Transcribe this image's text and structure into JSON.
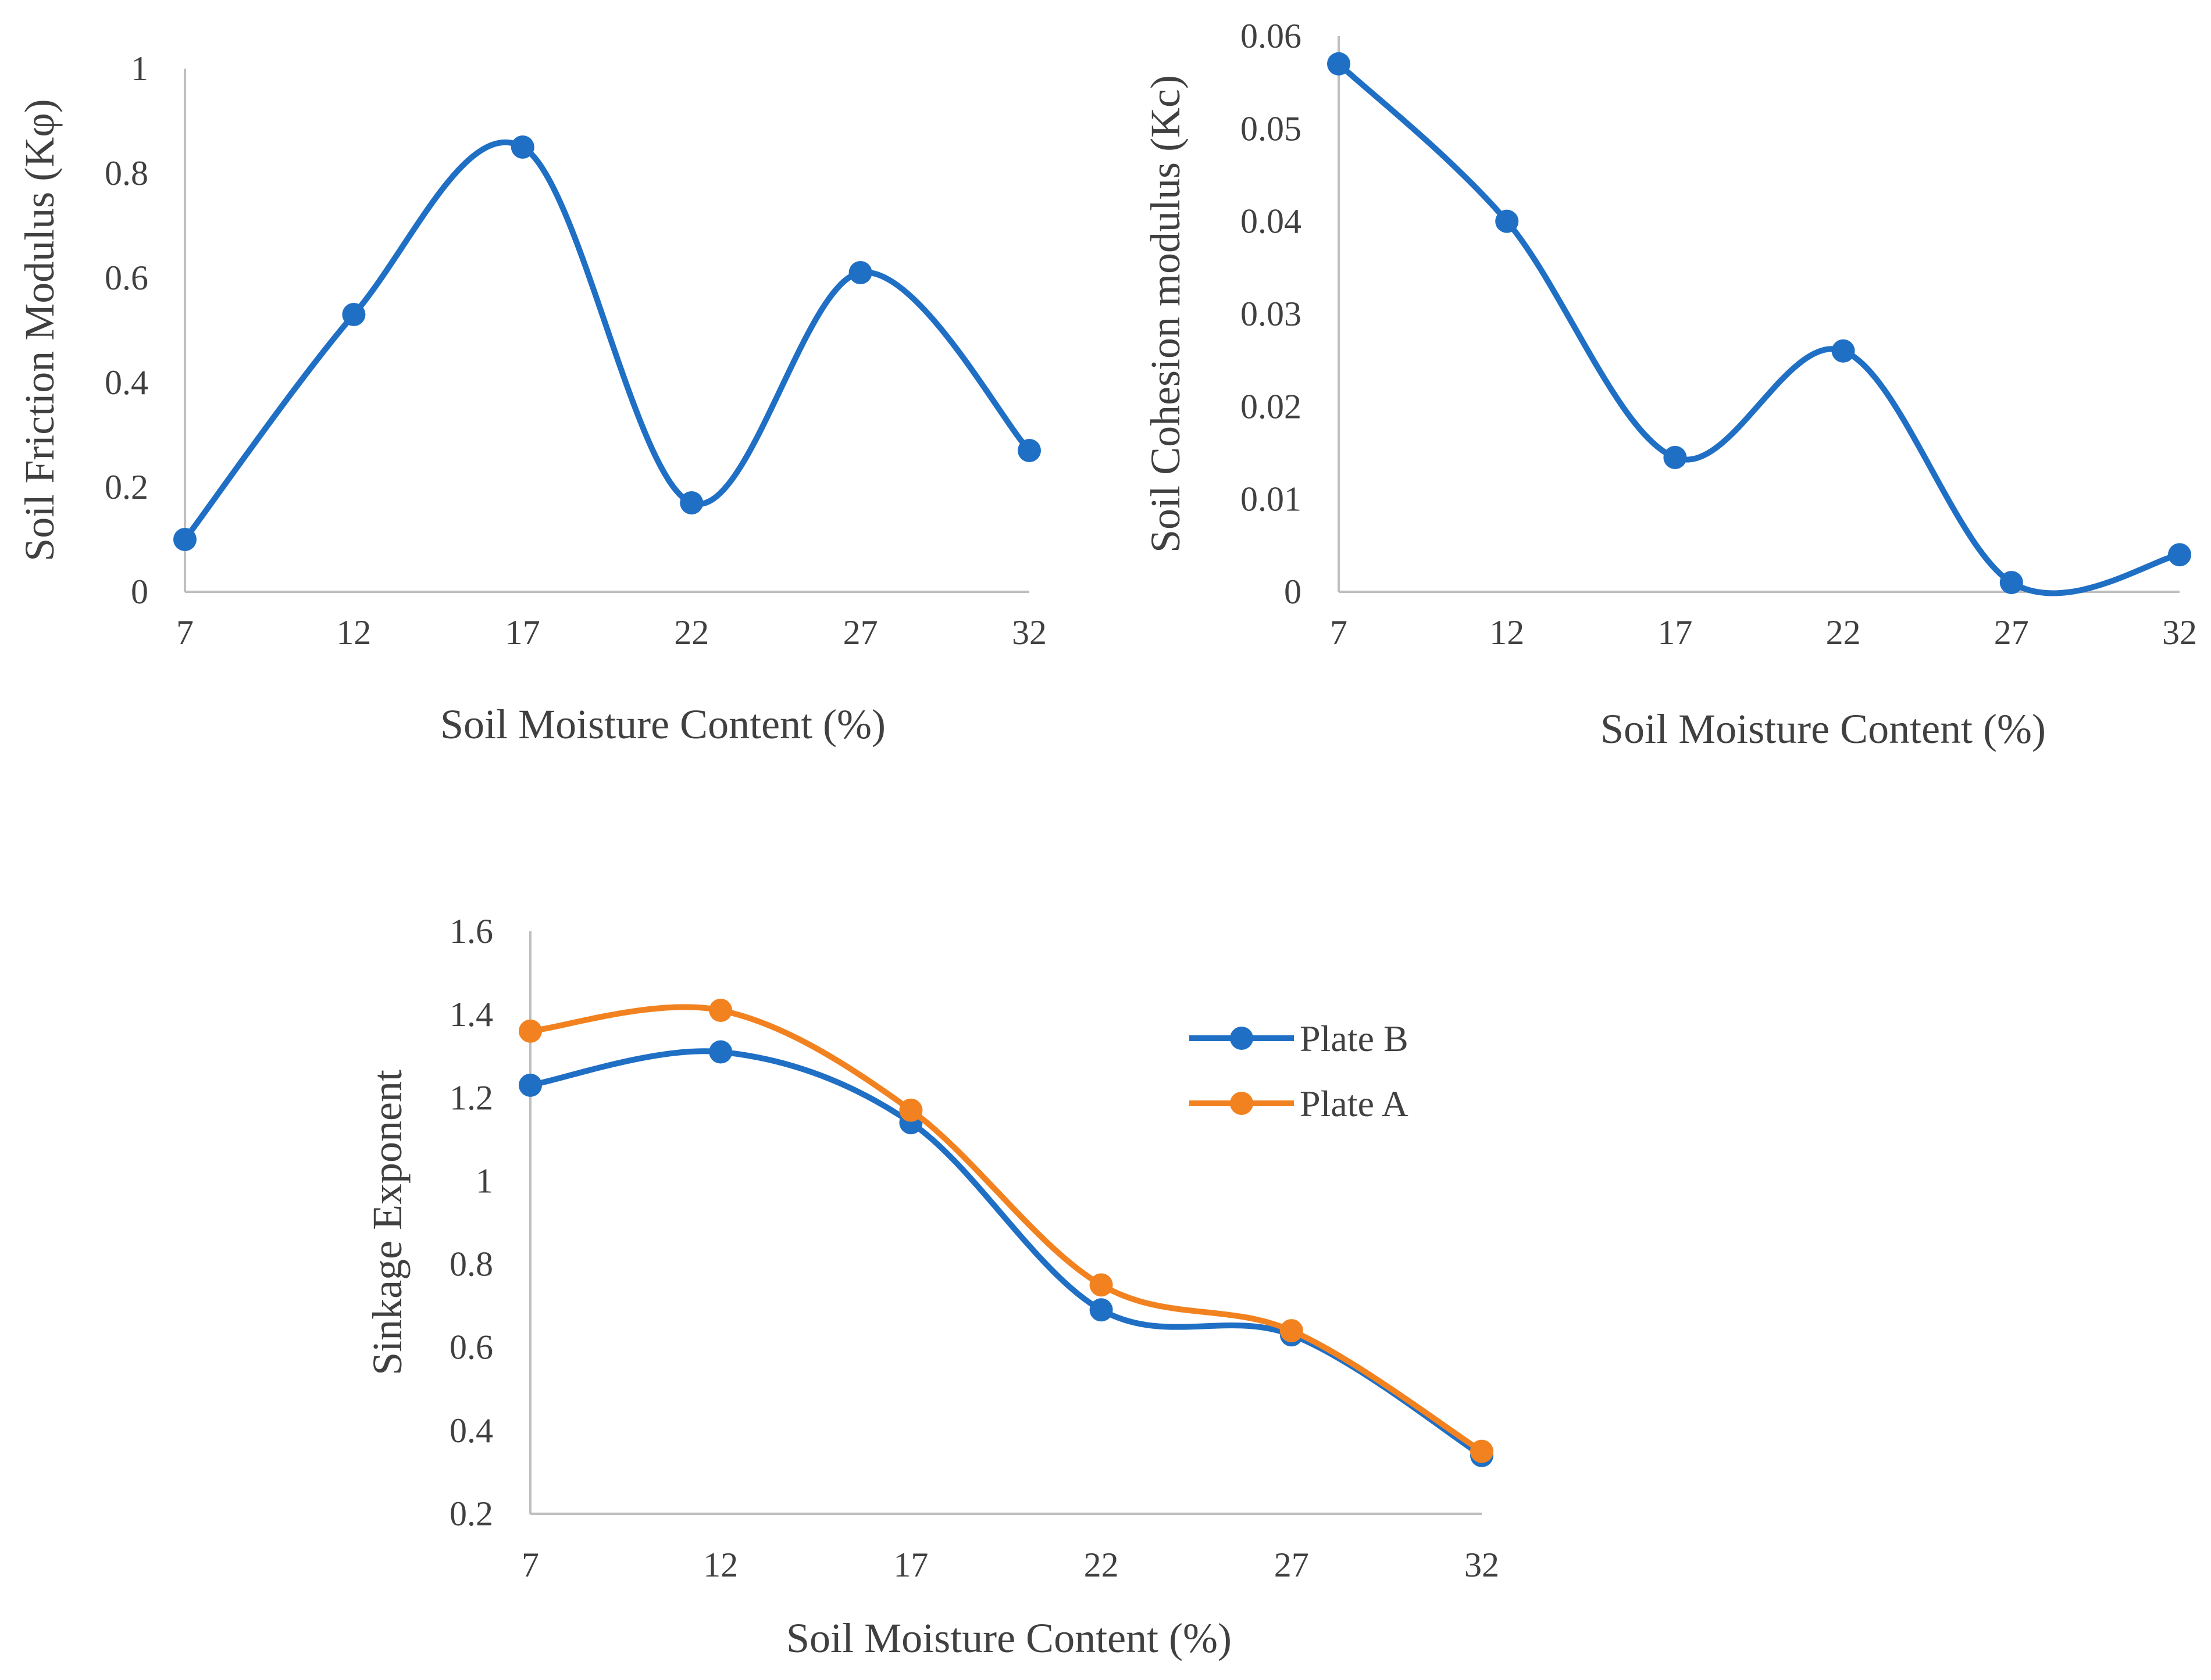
{
  "chart_data": [
    {
      "type": "line",
      "title": "",
      "xlabel": "Soil Moisture Content (%)",
      "ylabel": "Soil Friction Modulus (Kφ)",
      "categories": [
        "7",
        "12",
        "17",
        "22",
        "27",
        "32"
      ],
      "x": [
        7,
        12,
        17,
        22,
        27,
        32
      ],
      "y_ticks": [
        "0",
        "0.2",
        "0.4",
        "0.6",
        "0.8",
        "1"
      ],
      "ylim": [
        0,
        1
      ],
      "grid": false,
      "legend": "none",
      "series": [
        {
          "name": "Kφ",
          "color": "#1f6fc5",
          "values": [
            0.1,
            0.53,
            0.85,
            0.17,
            0.61,
            0.27
          ]
        }
      ]
    },
    {
      "type": "line",
      "title": "",
      "xlabel": "Soil Moisture Content (%)",
      "ylabel": "Soil Cohesion modulus (Kc)",
      "categories": [
        "7",
        "12",
        "17",
        "22",
        "27",
        "32"
      ],
      "x": [
        7,
        12,
        17,
        22,
        27,
        32
      ],
      "y_ticks": [
        "0",
        "0.01",
        "0.02",
        "0.03",
        "0.04",
        "0.05",
        "0.06"
      ],
      "ylim": [
        0,
        0.06
      ],
      "grid": false,
      "legend": "none",
      "series": [
        {
          "name": "Kc",
          "color": "#1f6fc5",
          "values": [
            0.057,
            0.04,
            0.0145,
            0.026,
            0.001,
            0.004
          ]
        }
      ]
    },
    {
      "type": "line",
      "title": "",
      "xlabel": "Soil Moisture Content (%)",
      "ylabel": "Sinkage Exponent",
      "categories": [
        "7",
        "12",
        "17",
        "22",
        "27",
        "32"
      ],
      "x": [
        7,
        12,
        17,
        22,
        27,
        32
      ],
      "y_ticks": [
        "0.2",
        "0.4",
        "0.6",
        "0.8",
        "1",
        "1.2",
        "1.4",
        "1.6"
      ],
      "ylim": [
        0.2,
        1.6
      ],
      "grid": false,
      "legend": "right",
      "series": [
        {
          "name": "Plate B",
          "color": "#1f6fc5",
          "values": [
            1.23,
            1.31,
            1.14,
            0.69,
            0.63,
            0.34
          ]
        },
        {
          "name": "Plate A",
          "color": "#f28220",
          "values": [
            1.36,
            1.41,
            1.17,
            0.75,
            0.64,
            0.35
          ]
        }
      ]
    }
  ]
}
